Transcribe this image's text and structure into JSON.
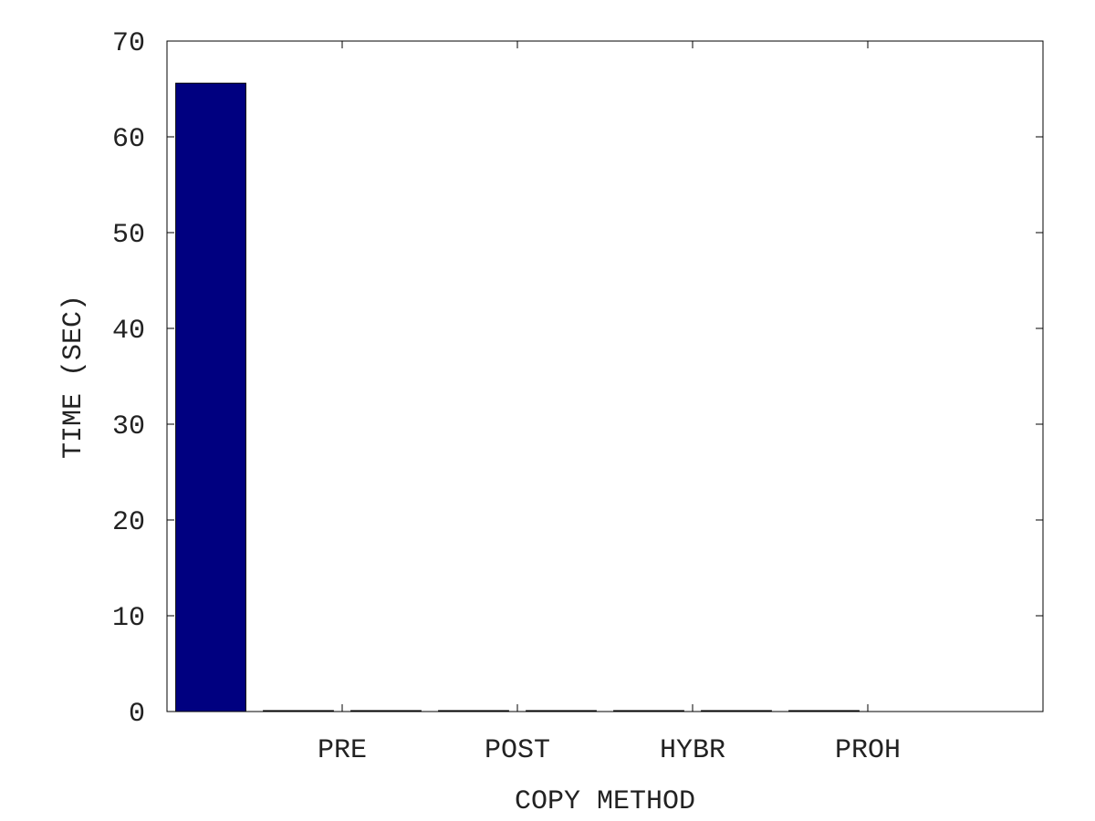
{
  "chart_data": {
    "type": "bar",
    "title": "",
    "xlabel": "COPY METHOD",
    "ylabel": "TIME (SEC)",
    "ylim": [
      0,
      70
    ],
    "yticks": [
      0,
      10,
      20,
      30,
      40,
      50,
      60,
      70
    ],
    "xtick_labels": [
      "PRE",
      "POST",
      "HYBR",
      "PROH"
    ],
    "grid": false,
    "legend": "none",
    "bars": [
      {
        "x": 0.5,
        "value": 65.6,
        "color": "#000080"
      },
      {
        "x": 1.5,
        "value": 0,
        "color": "#000080"
      },
      {
        "x": 2.5,
        "value": 0,
        "color": "#000080"
      },
      {
        "x": 3.5,
        "value": 0,
        "color": "#000080"
      },
      {
        "x": 4.5,
        "value": 0,
        "color": "#000080"
      },
      {
        "x": 5.5,
        "value": 0,
        "color": "#000080"
      },
      {
        "x": 6.5,
        "value": 0,
        "color": "#000080"
      },
      {
        "x": 7.5,
        "value": 0,
        "color": "#000080"
      }
    ],
    "xlim": [
      0,
      10
    ],
    "xtick_positions": [
      2,
      4,
      6,
      8
    ],
    "bar_width": 0.8
  }
}
